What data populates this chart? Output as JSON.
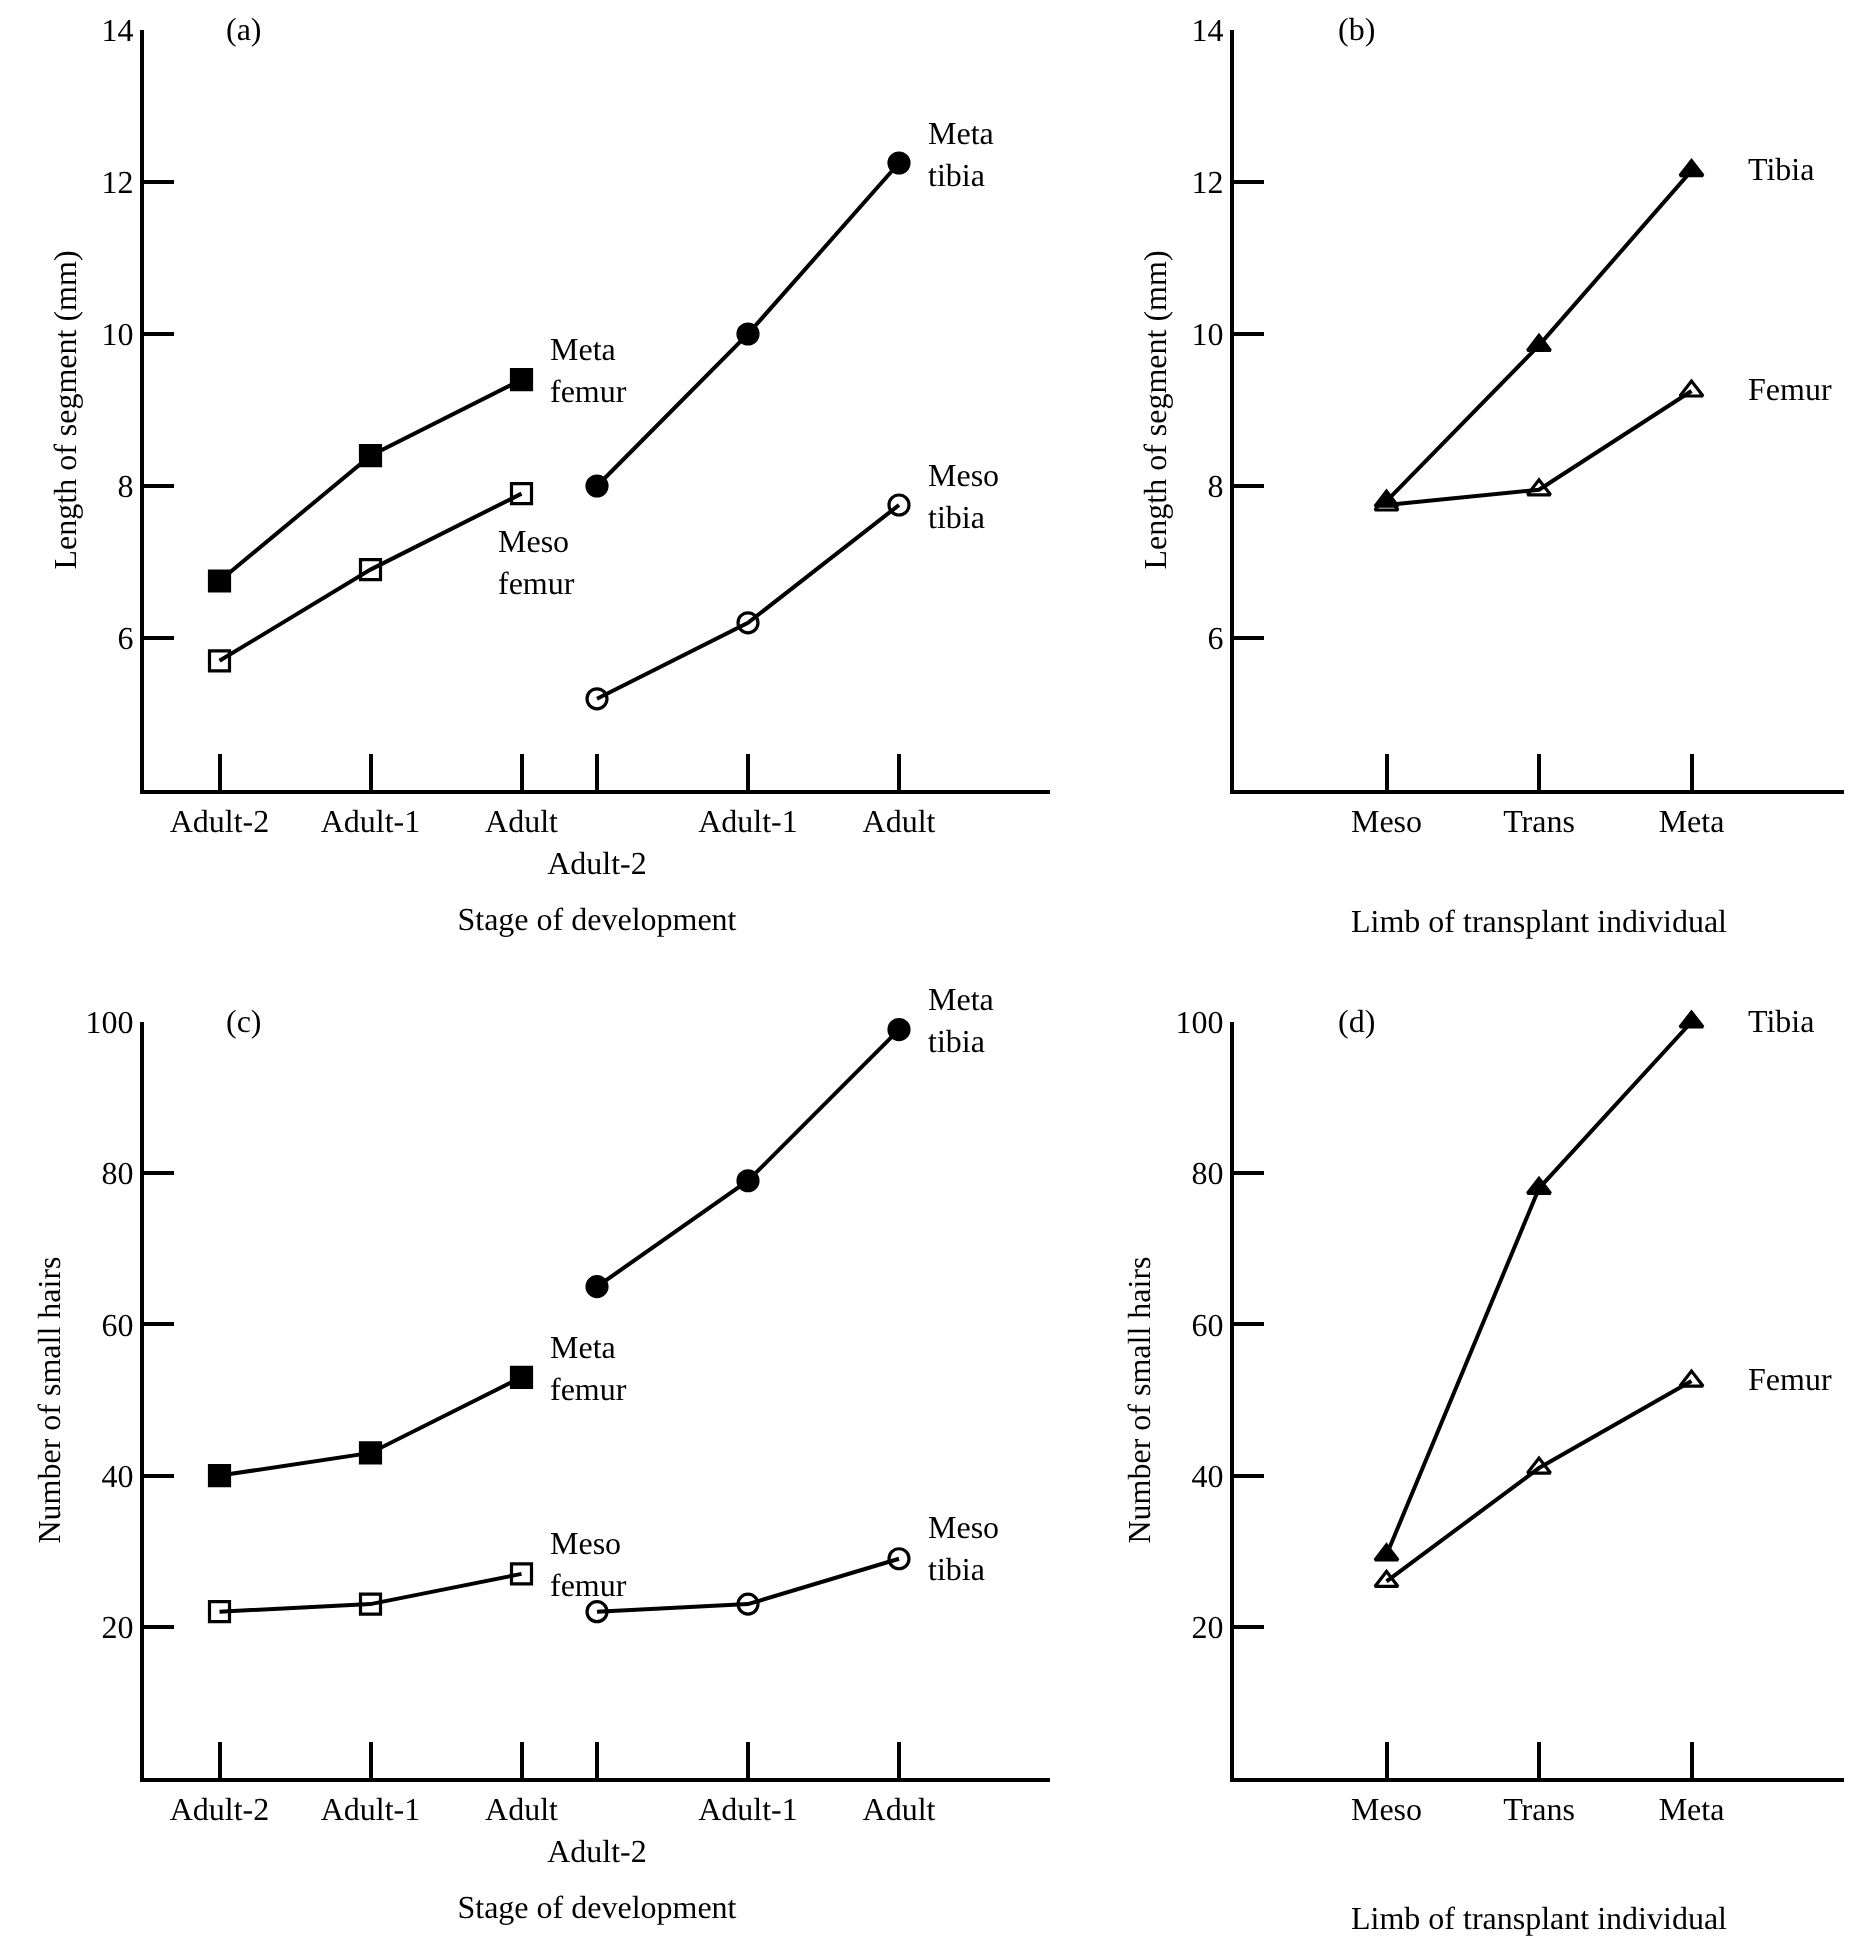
{
  "chart_data": [
    {
      "type": "line",
      "xlabel": "Stage of development",
      "ylabel": "Length of segment (mm)",
      "annotations": [
        "(a)"
      ],
      "categories": [
        "Adult-2",
        null,
        "Adult-1",
        null,
        "Adult",
        "Adult-2",
        null,
        "Adult-1",
        null,
        "Adult"
      ],
      "ylim": [
        4,
        14
      ],
      "yticks": [
        6,
        8,
        10,
        12,
        14
      ],
      "line_style": "solid",
      "series": [
        {
          "name": "Meta femur",
          "color": "#000000",
          "marker": "square",
          "values": [
            6.75,
            null,
            8.4,
            null,
            9.4,
            null,
            null,
            null,
            null,
            null
          ]
        },
        {
          "name": "Meso femur",
          "color": "#000000",
          "marker": "square-open",
          "values": [
            5.7,
            null,
            6.9,
            null,
            7.9,
            null,
            null,
            null,
            null,
            null
          ]
        },
        {
          "name": "Meta tibia",
          "color": "#000000",
          "marker": "circle",
          "values": [
            null,
            null,
            null,
            null,
            null,
            8.0,
            null,
            10.0,
            null,
            12.25
          ]
        },
        {
          "name": "Meso tibia",
          "color": "#000000",
          "marker": "circle-open",
          "values": [
            null,
            null,
            null,
            null,
            null,
            5.2,
            null,
            6.2,
            null,
            7.75
          ]
        }
      ]
    },
    {
      "type": "line",
      "xlabel": "Limb of transplant individual",
      "ylabel": "Length of segment (mm)",
      "annotations": [
        "(b)"
      ],
      "categories": [
        "Meso",
        "Trans",
        "Meta"
      ],
      "ylim": [
        4,
        14
      ],
      "yticks": [
        6,
        8,
        10,
        12,
        14
      ],
      "line_style": "solid",
      "series": [
        {
          "name": "Tibia",
          "color": "#000000",
          "marker": "triangle",
          "values": [
            7.8,
            9.85,
            12.15
          ]
        },
        {
          "name": "Femur",
          "color": "#000000",
          "marker": "triangle-open",
          "values": [
            7.75,
            7.95,
            9.25
          ]
        }
      ]
    },
    {
      "type": "line",
      "xlabel": "Stage of development",
      "ylabel": "Number of small hairs",
      "annotations": [
        "(c)"
      ],
      "categories": [
        "Adult-2",
        null,
        "Adult-1",
        null,
        "Adult",
        "Adult-2",
        null,
        "Adult-1",
        null,
        "Adult"
      ],
      "ylim": [
        0,
        100
      ],
      "yticks": [
        20,
        40,
        60,
        80,
        100
      ],
      "line_style": "solid",
      "series": [
        {
          "name": "Meta femur",
          "color": "#000000",
          "marker": "square",
          "values": [
            40,
            null,
            43,
            null,
            53,
            null,
            null,
            null,
            null,
            null
          ]
        },
        {
          "name": "Meso femur",
          "color": "#000000",
          "marker": "square-open",
          "values": [
            22,
            null,
            23,
            null,
            27,
            null,
            null,
            null,
            null,
            null
          ]
        },
        {
          "name": "Meta tibia",
          "color": "#000000",
          "marker": "circle",
          "values": [
            null,
            null,
            null,
            null,
            null,
            65,
            null,
            79,
            null,
            99
          ]
        },
        {
          "name": "Meso tibia",
          "color": "#000000",
          "marker": "circle-open",
          "values": [
            null,
            null,
            null,
            null,
            null,
            22,
            null,
            23,
            null,
            29
          ]
        }
      ]
    },
    {
      "type": "line",
      "xlabel": "Limb of transplant individual",
      "ylabel": "Number of small hairs",
      "annotations": [
        "(d)"
      ],
      "categories": [
        "Meso",
        "Trans",
        "Meta"
      ],
      "ylim": [
        0,
        100
      ],
      "yticks": [
        20,
        40,
        60,
        80,
        100
      ],
      "line_style": "solid",
      "series": [
        {
          "name": "Tibia",
          "color": "#000000",
          "marker": "triangle",
          "values": [
            29.5,
            78,
            100
          ]
        },
        {
          "name": "Femur",
          "color": "#000000",
          "marker": "triangle-open",
          "values": [
            26,
            41,
            52.5
          ]
        }
      ]
    }
  ]
}
